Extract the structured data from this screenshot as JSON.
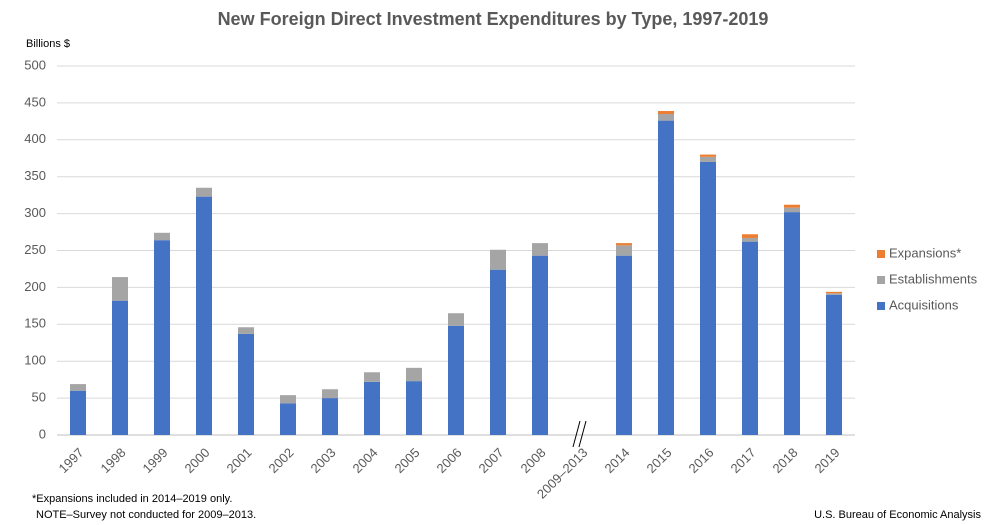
{
  "chart_data": {
    "type": "bar",
    "stacked": true,
    "title": "New Foreign Direct Investment Expenditures by Type, 1997-2019",
    "y_axis_label": "Billions $",
    "categories": [
      "1997",
      "1998",
      "1999",
      "2000",
      "2001",
      "2002",
      "2003",
      "2004",
      "2005",
      "2006",
      "2007",
      "2008",
      "2009–2013",
      "2014",
      "2015",
      "2016",
      "2017",
      "2018",
      "2019"
    ],
    "series": [
      {
        "name": "Acquisitions",
        "color": "#4472c4",
        "values": [
          60,
          182,
          264,
          323,
          137,
          43,
          50,
          72,
          73,
          148,
          224,
          243,
          null,
          243,
          426,
          370,
          262,
          302,
          190
        ]
      },
      {
        "name": "Establishments",
        "color": "#a5a5a5",
        "values": [
          9,
          32,
          10,
          12,
          9,
          11,
          12,
          13,
          18,
          17,
          27,
          17,
          null,
          14,
          9,
          7,
          5,
          6,
          2
        ]
      },
      {
        "name": "Expansions*",
        "color": "#ed7d31",
        "values": [
          null,
          null,
          null,
          null,
          null,
          null,
          null,
          null,
          null,
          null,
          null,
          null,
          null,
          3,
          4,
          3,
          5,
          4,
          2
        ]
      }
    ],
    "ylim": [
      0,
      500
    ],
    "yticks": [
      0,
      50,
      100,
      150,
      200,
      250,
      300,
      350,
      400,
      450,
      500
    ],
    "grid": true,
    "legend": "right",
    "footnotes": [
      "*Expansions included in 2014–2019 only.",
      "NOTE–Survey not conducted for 2009–2013."
    ],
    "source": "U.S. Bureau of Economic Analysis"
  }
}
